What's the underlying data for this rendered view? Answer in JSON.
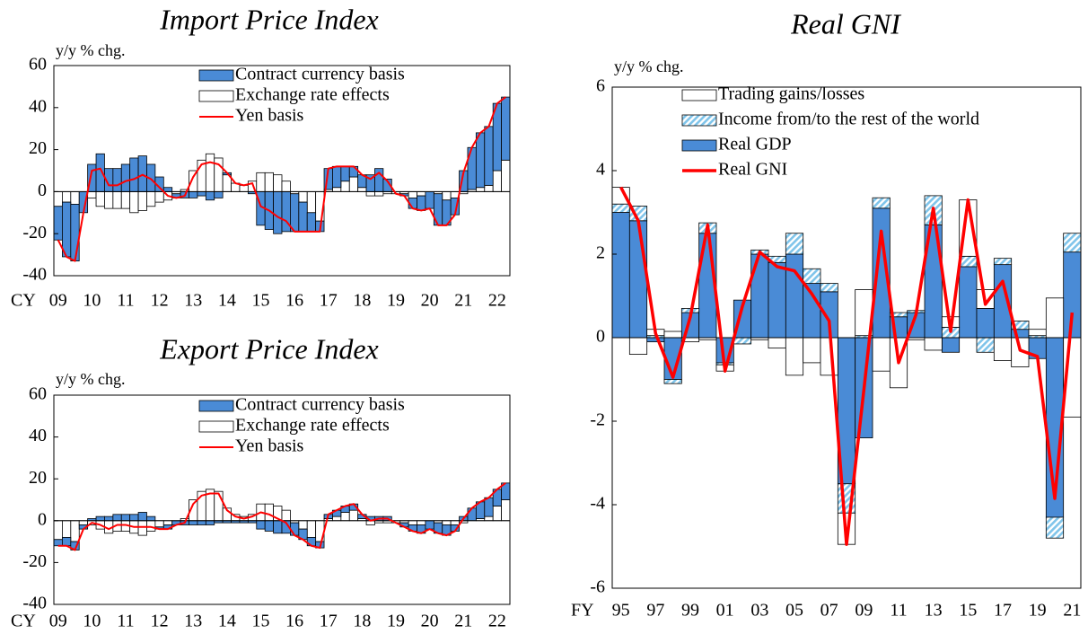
{
  "chart_data": [
    {
      "type": "combo",
      "title": "Import Price Index",
      "ylabel": "y/y % chg.",
      "xlabel": "CY",
      "categories": [
        "09",
        null,
        null,
        null,
        "10",
        null,
        null,
        null,
        "11",
        null,
        null,
        null,
        "12",
        null,
        null,
        null,
        "13",
        null,
        null,
        null,
        "14",
        null,
        null,
        null,
        "15",
        null,
        null,
        null,
        "16",
        null,
        null,
        null,
        "17",
        null,
        null,
        null,
        "18",
        null,
        null,
        null,
        "19",
        null,
        null,
        null,
        "20",
        null,
        null,
        null,
        "21",
        null,
        null,
        null,
        "22",
        null
      ],
      "ylim": [
        -40,
        60
      ],
      "yticks": [
        -40,
        -20,
        0,
        20,
        40,
        60
      ],
      "series": [
        {
          "name": "Exchange rate effects",
          "type": "bar",
          "color": "#ffffff",
          "values": [
            -7,
            -5,
            -6,
            0,
            -3,
            -7,
            -8,
            -8,
            -8,
            -10,
            -9,
            -7,
            -5,
            -4,
            -1,
            1,
            10,
            15,
            18,
            16,
            8,
            4,
            3,
            5,
            9,
            9,
            8,
            5,
            -1,
            -5,
            -10,
            -14,
            1,
            2,
            5,
            7,
            2,
            -2,
            -2,
            -1,
            -1,
            -1,
            -3,
            -2,
            0,
            -1,
            -4,
            -3,
            -1,
            1,
            2,
            3,
            10,
            15
          ]
        },
        {
          "name": "Contract currency basis",
          "type": "bar",
          "color": "#4a8bd6",
          "values": [
            -16,
            -26,
            -27,
            -10,
            13,
            18,
            11,
            11,
            13,
            16,
            17,
            13,
            7,
            2,
            -2,
            -3,
            -3,
            -2,
            -4,
            -3,
            1,
            0,
            0,
            -1,
            -16,
            -18,
            -20,
            -19,
            -18,
            -14,
            -9,
            -5,
            10,
            10,
            7,
            5,
            6,
            8,
            11,
            6,
            0,
            -1,
            -5,
            -7,
            -8,
            -15,
            -12,
            -8,
            10,
            20,
            26,
            28,
            32,
            30
          ]
        },
        {
          "name": "Yen basis",
          "type": "line",
          "color": "#ff0000",
          "values": [
            -23,
            -31,
            -33,
            -10,
            10,
            11,
            3,
            3,
            5,
            6,
            8,
            6,
            2,
            -2,
            -3,
            -2,
            7,
            13,
            14,
            13,
            9,
            4,
            3,
            4,
            -7,
            -9,
            -12,
            -14,
            -19,
            -19,
            -19,
            -19,
            11,
            12,
            12,
            12,
            8,
            6,
            9,
            5,
            -1,
            -2,
            -8,
            -9,
            -8,
            -16,
            -16,
            -11,
            9,
            21,
            28,
            31,
            42,
            45
          ]
        }
      ]
    },
    {
      "type": "combo",
      "title": "Export Price Index",
      "ylabel": "y/y % chg.",
      "xlabel": "CY",
      "categories": [
        "09",
        null,
        null,
        null,
        "10",
        null,
        null,
        null,
        "11",
        null,
        null,
        null,
        "12",
        null,
        null,
        null,
        "13",
        null,
        null,
        null,
        "14",
        null,
        null,
        null,
        "15",
        null,
        null,
        null,
        "16",
        null,
        null,
        null,
        "17",
        null,
        null,
        null,
        "18",
        null,
        null,
        null,
        "19",
        null,
        null,
        null,
        "20",
        null,
        null,
        null,
        "21",
        null,
        null,
        null,
        "22",
        null
      ],
      "ylim": [
        -40,
        60
      ],
      "yticks": [
        -40,
        -20,
        0,
        20,
        40,
        60
      ],
      "series": [
        {
          "name": "Exchange rate effects",
          "type": "bar",
          "color": "#ffffff",
          "values": [
            -9,
            -8,
            -10,
            -2,
            -2,
            -4,
            -6,
            -5,
            -5,
            -6,
            -7,
            -5,
            -3,
            -2,
            0,
            1,
            10,
            14,
            15,
            14,
            6,
            3,
            2,
            3,
            8,
            8,
            7,
            5,
            -1,
            -4,
            -8,
            -10,
            1,
            2,
            4,
            5,
            1,
            -2,
            -1,
            -1,
            -1,
            -1,
            -2,
            -2,
            0,
            -1,
            -2,
            -2,
            -1,
            0,
            1,
            2,
            7,
            10
          ]
        },
        {
          "name": "Contract currency basis",
          "type": "bar",
          "color": "#4a8bd6",
          "values": [
            -3,
            -4,
            -4,
            -2,
            1,
            2,
            2,
            3,
            3,
            3,
            4,
            2,
            -1,
            -2,
            -2,
            -2,
            -2,
            -2,
            -2,
            -1,
            -1,
            -1,
            -1,
            -1,
            -4,
            -5,
            -6,
            -6,
            -6,
            -5,
            -4,
            -3,
            2,
            3,
            3,
            3,
            2,
            2,
            2,
            2,
            0,
            -2,
            -3,
            -4,
            -4,
            -5,
            -5,
            -3,
            2,
            6,
            8,
            9,
            8,
            8
          ]
        },
        {
          "name": "Yen basis",
          "type": "line",
          "color": "#ff0000",
          "values": [
            -12,
            -12,
            -14,
            -4,
            -1,
            -2,
            -4,
            -2,
            -2,
            -3,
            -3,
            -3,
            -4,
            -4,
            -2,
            -1,
            8,
            12,
            13,
            13,
            5,
            2,
            1,
            2,
            4,
            3,
            1,
            -1,
            -7,
            -9,
            -12,
            -13,
            3,
            5,
            7,
            8,
            3,
            0,
            1,
            1,
            -1,
            -3,
            -5,
            -6,
            -4,
            -6,
            -7,
            -5,
            1,
            6,
            9,
            11,
            15,
            18
          ]
        }
      ]
    },
    {
      "type": "combo",
      "title": "Real GNI",
      "ylabel": "y/y % chg.",
      "xlabel": "FY",
      "categories": [
        "95",
        null,
        "97",
        null,
        "99",
        null,
        "01",
        null,
        "03",
        null,
        "05",
        null,
        "07",
        null,
        "09",
        null,
        "11",
        null,
        "13",
        null,
        "15",
        null,
        "17",
        null,
        "19",
        null,
        "21"
      ],
      "ylim": [
        -6,
        6
      ],
      "yticks": [
        -6,
        -4,
        -2,
        0,
        2,
        4,
        6
      ],
      "series": [
        {
          "name": "Real GDP",
          "type": "bar",
          "color": "#4a8bd6",
          "values": [
            3.0,
            2.8,
            -0.1,
            -1.0,
            0.6,
            2.5,
            -0.6,
            0.9,
            2.0,
            1.8,
            2.0,
            1.3,
            1.1,
            -3.5,
            -2.4,
            3.1,
            0.5,
            0.6,
            2.7,
            -0.35,
            1.7,
            0.7,
            1.75,
            0.2,
            -0.5,
            -4.3,
            2.05
          ]
        },
        {
          "name": "Income from/to the rest of the world",
          "type": "bar",
          "color": "#7fc4ea",
          "pattern": "hatch",
          "values": [
            0.2,
            0.35,
            0.05,
            -0.1,
            0.1,
            0.25,
            -0.05,
            -0.15,
            0.1,
            0.15,
            0.5,
            0.35,
            0.2,
            -0.7,
            0.05,
            0.25,
            0.1,
            0.05,
            0.7,
            0.25,
            0.25,
            -0.35,
            0.15,
            0.2,
            0.05,
            -0.5,
            0.45
          ]
        },
        {
          "name": "Trading gains/losses",
          "type": "bar",
          "color": "#ffffff",
          "values": [
            0.4,
            -0.4,
            0.15,
            0.15,
            -0.1,
            -0.05,
            -0.15,
            0.0,
            -0.05,
            -0.25,
            -0.9,
            -0.6,
            -0.9,
            -0.75,
            1.1,
            -0.8,
            -1.2,
            -0.05,
            -0.3,
            0.25,
            1.35,
            0.45,
            -0.55,
            -0.7,
            0.15,
            0.95,
            -1.9
          ]
        },
        {
          "name": "Real GNI",
          "type": "line",
          "color": "#ff0000",
          "values": [
            3.6,
            2.8,
            0.1,
            -0.95,
            0.5,
            2.7,
            -0.8,
            0.75,
            2.05,
            1.7,
            1.6,
            1.05,
            0.4,
            -4.95,
            -1.25,
            2.55,
            -0.6,
            0.55,
            3.1,
            0.15,
            3.3,
            0.8,
            1.35,
            -0.3,
            -0.45,
            -3.85,
            0.6
          ]
        }
      ]
    }
  ]
}
